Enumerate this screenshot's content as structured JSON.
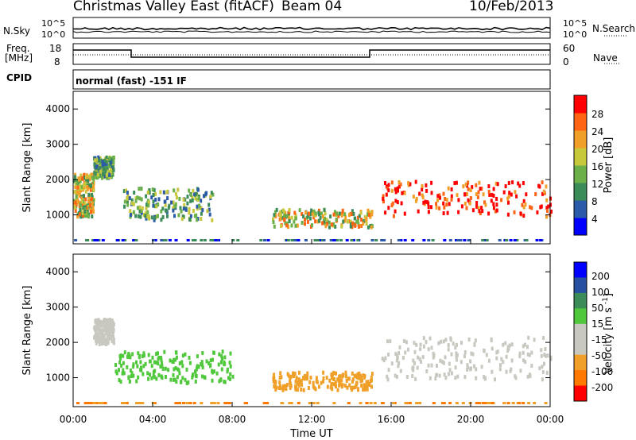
{
  "header": {
    "station": "Christmas Valley East (fitACF)",
    "beam": "Beam 04",
    "date": "10/Feb/2013"
  },
  "noise_panel": {
    "left_label": "N.Sky",
    "right_label": "N.Search",
    "left_ticks": [
      "10^5",
      "10^0"
    ],
    "right_ticks": [
      "10^5",
      "10^0"
    ]
  },
  "freq_panel": {
    "left_label_1": "Freq.",
    "left_label_2": "[MHz]",
    "right_label": "Nave",
    "left_ticks": [
      "18",
      "8"
    ],
    "right_ticks": [
      "60",
      "0"
    ]
  },
  "cpid": {
    "label": "CPID",
    "value": "normal (fast) -151 IF"
  },
  "colors": {
    "power_scale": [
      "#0000ff",
      "#2a5aa8",
      "#3c8c5a",
      "#6cb04a",
      "#c8c83c",
      "#f0a028",
      "#ff6414",
      "#ff0000"
    ],
    "velocity_scale": [
      "#ff0000",
      "#ff7800",
      "#f0a028",
      "#c8c8c0",
      "#c8c8c0",
      "#50c83c",
      "#3c8c5a",
      "#2850a0",
      "#0000ff"
    ]
  },
  "chart_data": [
    {
      "type": "heatmap",
      "panel": "power",
      "ylabel": "Slant Range [km]",
      "ylim": [
        180,
        4500
      ],
      "xlim_hours": [
        0,
        24
      ],
      "y_ticks": [
        "4000",
        "3000",
        "2000",
        "1000"
      ],
      "colorbar_label": "Power [dB]",
      "colorbar_ticks": [
        "28",
        "24",
        "20",
        "16",
        "12",
        "8",
        "4"
      ],
      "features": [
        {
          "t_start": 0.0,
          "t_end": 1.0,
          "range_km": [
            1000,
            2200
          ],
          "level": "strong"
        },
        {
          "t_start": 1.0,
          "t_end": 2.0,
          "range_km": [
            2100,
            2700
          ],
          "level": "moderate"
        },
        {
          "t_start": 2.5,
          "t_end": 7.0,
          "range_km": [
            900,
            1800
          ],
          "level": "moderate"
        },
        {
          "t_start": 10.0,
          "t_end": 15.0,
          "range_km": [
            700,
            1200
          ],
          "level": "strong"
        },
        {
          "t_start": 15.5,
          "t_end": 24.0,
          "range_km": [
            1000,
            2000
          ],
          "level": "very strong"
        }
      ]
    },
    {
      "type": "heatmap",
      "panel": "velocity",
      "ylabel": "Slant Range [km]",
      "xlabel": "Time UT",
      "ylim": [
        180,
        4500
      ],
      "xlim_hours": [
        0,
        24
      ],
      "y_ticks": [
        "4000",
        "3000",
        "2000",
        "1000"
      ],
      "x_ticks": [
        "00:00",
        "04:00",
        "08:00",
        "12:00",
        "16:00",
        "20:00",
        "00:00"
      ],
      "colorbar_label": "Velocity [m s",
      "colorbar_label_sup": "-1",
      "colorbar_label_end": "]",
      "colorbar_ticks": [
        "200",
        "100",
        "50",
        "15",
        "-15",
        "-50",
        "-100",
        "-200"
      ],
      "features": [
        {
          "t_start": 1.0,
          "t_end": 2.0,
          "range_km": [
            2000,
            2700
          ],
          "velocity": 0
        },
        {
          "t_start": 2.0,
          "t_end": 8.0,
          "range_km": [
            900,
            1800
          ],
          "velocity": 30
        },
        {
          "t_start": 10.0,
          "t_end": 15.0,
          "range_km": [
            700,
            1200
          ],
          "velocity": -40
        },
        {
          "t_start": 15.5,
          "t_end": 24.0,
          "range_km": [
            1000,
            2200
          ],
          "velocity": 0
        }
      ]
    }
  ]
}
